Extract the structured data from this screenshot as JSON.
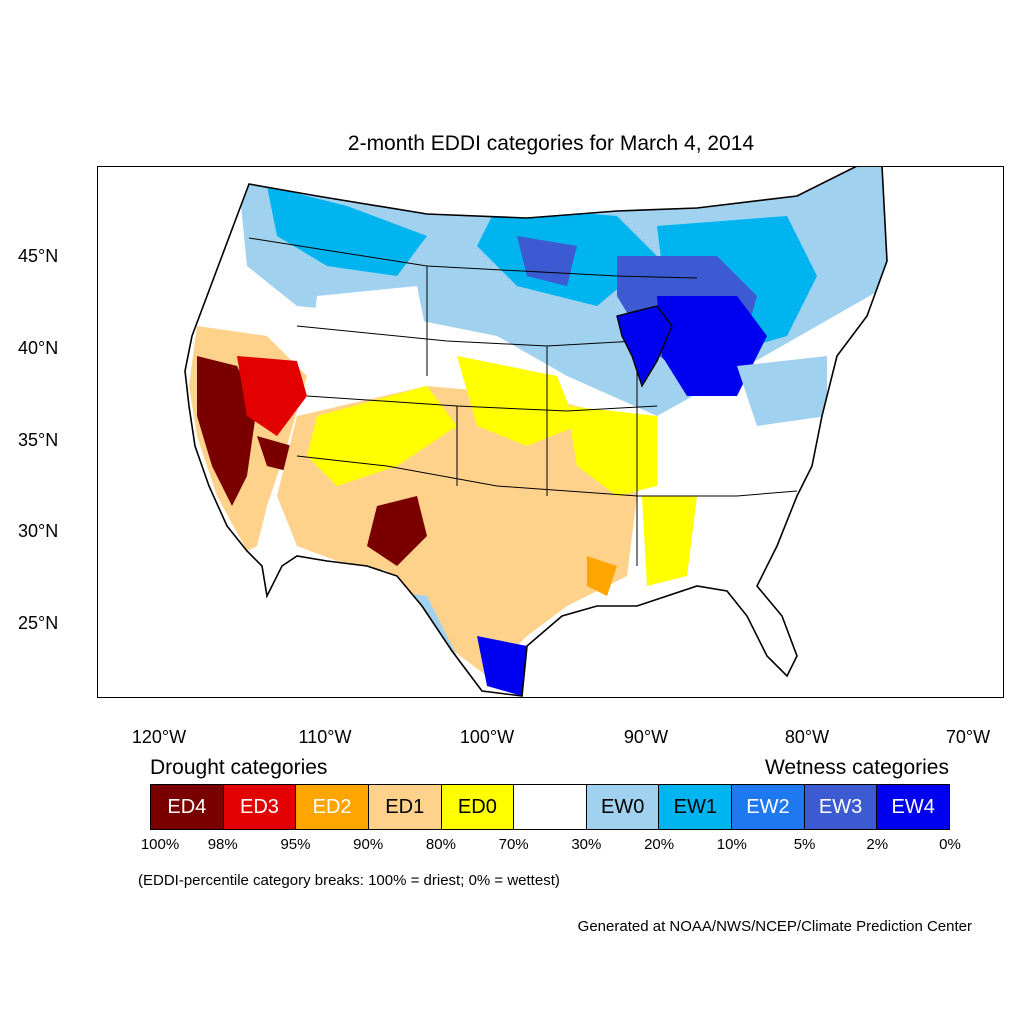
{
  "title": "2-month EDDI categories for March 4, 2014",
  "longitude_labels": [
    "120°W",
    "110°W",
    "100°W",
    "90°W",
    "80°W",
    "70°W"
  ],
  "latitude_labels": [
    "45°N",
    "40°N",
    "35°N",
    "30°N",
    "25°N"
  ],
  "legend": {
    "drought_heading": "Drought categories",
    "wetness_heading": "Wetness categories",
    "categories": [
      {
        "label": "ED4",
        "color": "#7a0000",
        "text_color": "#ffffff"
      },
      {
        "label": "ED3",
        "color": "#e30000",
        "text_color": "#ffffff"
      },
      {
        "label": "ED2",
        "color": "#ffa500",
        "text_color": "#ffffff"
      },
      {
        "label": "ED1",
        "color": "#ffd28c",
        "text_color": "#000000"
      },
      {
        "label": "ED0",
        "color": "#ffff00",
        "text_color": "#000000"
      },
      {
        "label": "",
        "color": "#ffffff",
        "text_color": "#000000"
      },
      {
        "label": "EW0",
        "color": "#a0d2f0",
        "text_color": "#000000"
      },
      {
        "label": "EW1",
        "color": "#00b4f0",
        "text_color": "#000000"
      },
      {
        "label": "EW2",
        "color": "#1e78f0",
        "text_color": "#ffffff"
      },
      {
        "label": "EW3",
        "color": "#3c5ad2",
        "text_color": "#ffffff"
      },
      {
        "label": "EW4",
        "color": "#0000f0",
        "text_color": "#ffffff"
      }
    ],
    "breaks": [
      "100%",
      "98%",
      "95%",
      "90%",
      "80%",
      "70%",
      "30%",
      "20%",
      "10%",
      "5%",
      "2%",
      "0%"
    ]
  },
  "note": "(EDDI-percentile category breaks: 100% = driest; 0% = wettest)",
  "credit": "Generated at NOAA/NWS/NCEP/Climate Prediction Center"
}
